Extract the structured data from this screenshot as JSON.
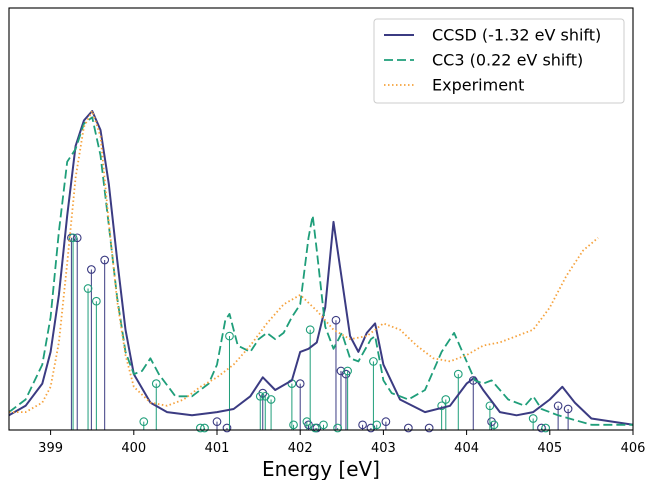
{
  "chart_data": {
    "type": "line",
    "title": "",
    "xlabel": "Energy [eV]",
    "ylabel": "",
    "xlim": [
      398.5,
      406.0
    ],
    "ylim": [
      0,
      1.0
    ],
    "xticks": [
      399,
      400,
      401,
      402,
      403,
      404,
      405,
      406
    ],
    "grid": false,
    "legend_position": "top-right",
    "series": [
      {
        "name": "CCSD (-1.32 eV shift)",
        "style": "solid",
        "color": "#3b3b82",
        "x": [
          398.5,
          398.7,
          398.9,
          399.0,
          399.1,
          399.2,
          399.3,
          399.4,
          399.5,
          399.6,
          399.7,
          399.8,
          399.9,
          400.0,
          400.2,
          400.4,
          400.7,
          401.0,
          401.2,
          401.4,
          401.55,
          401.7,
          401.9,
          402.0,
          402.1,
          402.2,
          402.3,
          402.4,
          402.5,
          402.6,
          402.7,
          402.8,
          402.9,
          403.0,
          403.2,
          403.5,
          403.8,
          404.0,
          404.1,
          404.2,
          404.4,
          404.6,
          404.8,
          405.0,
          405.15,
          405.3,
          405.5,
          406.0
        ],
        "y": [
          0.04,
          0.07,
          0.14,
          0.24,
          0.42,
          0.67,
          0.89,
          0.97,
          1.0,
          0.94,
          0.77,
          0.53,
          0.31,
          0.17,
          0.08,
          0.05,
          0.04,
          0.05,
          0.06,
          0.1,
          0.16,
          0.12,
          0.15,
          0.24,
          0.25,
          0.27,
          0.38,
          0.65,
          0.47,
          0.29,
          0.24,
          0.3,
          0.33,
          0.2,
          0.09,
          0.05,
          0.07,
          0.14,
          0.16,
          0.12,
          0.05,
          0.04,
          0.05,
          0.09,
          0.13,
          0.08,
          0.03,
          0.01
        ]
      },
      {
        "name": "CC3 (0.22 eV shift)",
        "style": "dashed",
        "color": "#1f9e7a",
        "x": [
          398.5,
          398.7,
          398.9,
          399.0,
          399.1,
          399.2,
          399.3,
          399.4,
          399.5,
          399.6,
          399.7,
          399.8,
          399.9,
          400.0,
          400.1,
          400.2,
          400.3,
          400.5,
          400.7,
          400.9,
          401.0,
          401.1,
          401.15,
          401.25,
          401.4,
          401.5,
          401.6,
          401.7,
          401.8,
          401.9,
          402.0,
          402.1,
          402.15,
          402.2,
          402.3,
          402.4,
          402.5,
          402.6,
          402.7,
          402.85,
          402.9,
          403.0,
          403.1,
          403.3,
          403.5,
          403.7,
          403.85,
          404.0,
          404.1,
          404.2,
          404.3,
          404.5,
          404.7,
          404.8,
          404.9,
          405.1,
          405.5,
          406.0
        ],
        "y": [
          0.05,
          0.09,
          0.2,
          0.35,
          0.62,
          0.84,
          0.88,
          0.96,
          0.98,
          0.86,
          0.64,
          0.41,
          0.24,
          0.17,
          0.18,
          0.22,
          0.17,
          0.1,
          0.1,
          0.14,
          0.2,
          0.34,
          0.36,
          0.26,
          0.24,
          0.28,
          0.3,
          0.28,
          0.3,
          0.35,
          0.39,
          0.6,
          0.67,
          0.56,
          0.32,
          0.25,
          0.3,
          0.22,
          0.21,
          0.28,
          0.29,
          0.15,
          0.11,
          0.09,
          0.12,
          0.24,
          0.3,
          0.21,
          0.15,
          0.14,
          0.15,
          0.09,
          0.07,
          0.1,
          0.06,
          0.04,
          0.01,
          0.01
        ]
      },
      {
        "name": "Experiment",
        "style": "dotted",
        "color": "#f5a23d",
        "x": [
          398.5,
          398.7,
          398.9,
          399.0,
          399.1,
          399.2,
          399.3,
          399.4,
          399.5,
          399.6,
          399.7,
          399.8,
          399.9,
          400.0,
          400.2,
          400.4,
          400.6,
          400.8,
          401.0,
          401.2,
          401.4,
          401.6,
          401.8,
          402.0,
          402.2,
          402.4,
          402.6,
          402.8,
          403.0,
          403.2,
          403.4,
          403.6,
          403.8,
          404.0,
          404.2,
          404.4,
          404.6,
          404.8,
          405.0,
          405.2,
          405.4,
          405.58
        ],
        "y": [
          0.05,
          0.05,
          0.08,
          0.13,
          0.27,
          0.52,
          0.79,
          0.95,
          1.0,
          0.92,
          0.65,
          0.4,
          0.23,
          0.13,
          0.08,
          0.07,
          0.09,
          0.13,
          0.16,
          0.2,
          0.26,
          0.33,
          0.39,
          0.42,
          0.37,
          0.31,
          0.28,
          0.29,
          0.33,
          0.31,
          0.26,
          0.22,
          0.21,
          0.23,
          0.26,
          0.27,
          0.29,
          0.31,
          0.38,
          0.48,
          0.56,
          0.6
        ]
      }
    ],
    "sticks": [
      {
        "name": "CCSD (-1.32 eV shift)",
        "color": "#3b3b82",
        "x": [
          399.25,
          399.32,
          399.49,
          399.65,
          401.0,
          401.12,
          401.55,
          402.0,
          402.1,
          402.2,
          402.43,
          402.49,
          402.55,
          402.75,
          402.85,
          403.03,
          403.3,
          403.55,
          404.08,
          404.3,
          404.9,
          405.1,
          405.22
        ],
        "y": [
          0.6,
          0.6,
          0.5,
          0.53,
          0.02,
          0.0,
          0.11,
          0.14,
          0.01,
          0.0,
          0.34,
          0.18,
          0.17,
          0.01,
          0.0,
          0.02,
          0.0,
          0.0,
          0.15,
          0.02,
          0.0,
          0.07,
          0.06
        ]
      },
      {
        "name": "CC3 (0.22 eV shift)",
        "color": "#1f9e7a",
        "x": [
          399.27,
          399.45,
          399.55,
          400.12,
          400.27,
          400.8,
          400.85,
          401.15,
          401.52,
          401.58,
          401.65,
          401.9,
          401.92,
          402.08,
          402.12,
          402.18,
          402.28,
          402.45,
          402.57,
          402.88,
          402.92,
          403.7,
          403.75,
          403.9,
          404.28,
          404.33,
          404.8,
          404.95
        ],
        "y": [
          0.6,
          0.44,
          0.4,
          0.02,
          0.14,
          0.0,
          0.0,
          0.29,
          0.1,
          0.1,
          0.09,
          0.14,
          0.01,
          0.02,
          0.31,
          0.0,
          0.01,
          0.0,
          0.18,
          0.21,
          0.01,
          0.07,
          0.09,
          0.17,
          0.07,
          0.01,
          0.03,
          0.0
        ]
      }
    ]
  }
}
